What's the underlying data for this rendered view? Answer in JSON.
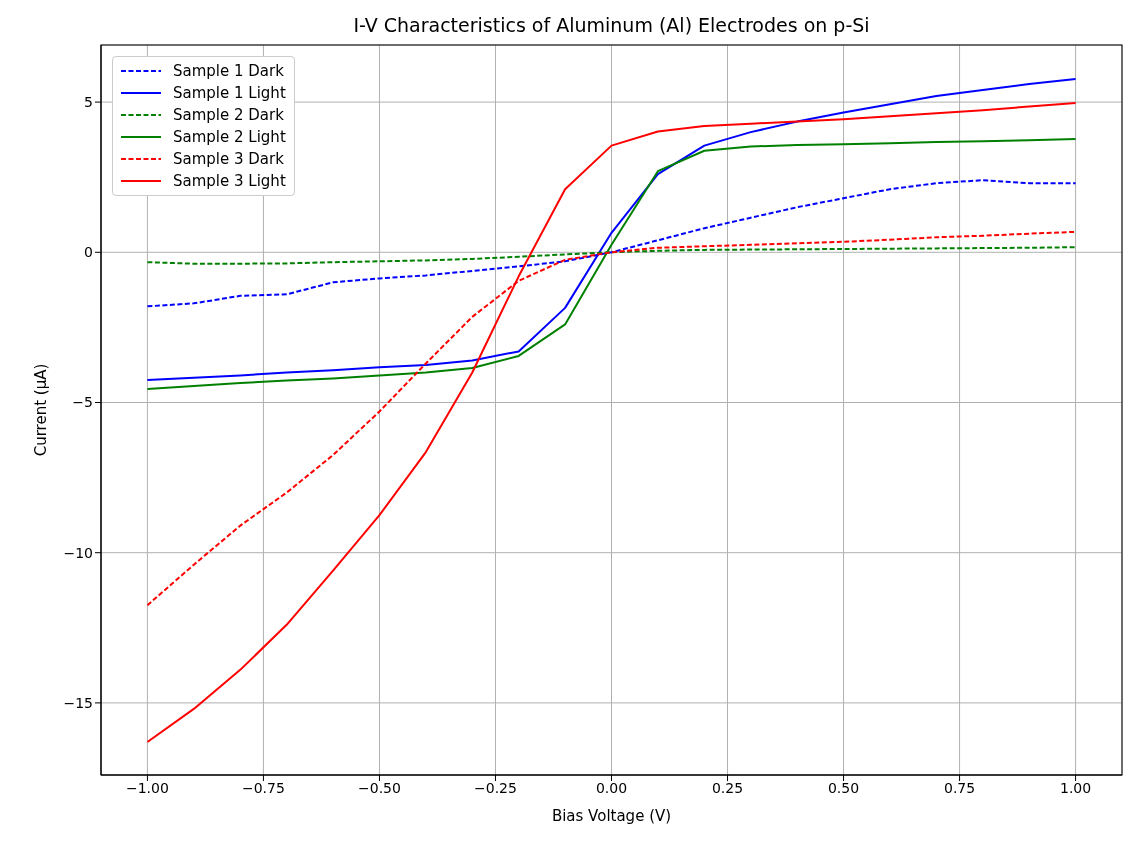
{
  "chart_data": {
    "type": "line",
    "title": "I-V Characteristics of Aluminum (Al) Electrodes on p-Si",
    "xlabel": "Bias Voltage (V)",
    "ylabel": "Current (μA)",
    "x": [
      -1,
      -0.9,
      -0.8,
      -0.7,
      -0.6,
      -0.5,
      -0.4,
      -0.3,
      -0.2,
      -0.1,
      0,
      0.1,
      0.2,
      0.3,
      0.4,
      0.5,
      0.6,
      0.7,
      0.8,
      0.9,
      1
    ],
    "series": [
      {
        "name": "Sample 1 Dark",
        "color": "#0000ff",
        "line_style": "dashed",
        "values": [
          -1.8,
          -1.7,
          -1.45,
          -1.4,
          -1.0,
          -0.87,
          -0.77,
          -0.62,
          -0.47,
          -0.3,
          0,
          0.4,
          0.8,
          1.15,
          1.5,
          1.8,
          2.1,
          2.3,
          2.4,
          2.3,
          2.3
        ]
      },
      {
        "name": "Sample 1 Light",
        "color": "#0000ff",
        "line_style": "solid",
        "values": [
          -4.25,
          -4.18,
          -4.1,
          -4.0,
          -3.93,
          -3.83,
          -3.75,
          -3.6,
          -3.3,
          -1.85,
          0.65,
          2.6,
          3.55,
          4.0,
          4.35,
          4.65,
          4.93,
          5.2,
          5.4,
          5.6,
          5.77
        ]
      },
      {
        "name": "Sample 2 Dark",
        "color": "#008000",
        "line_style": "dashed",
        "values": [
          -0.33,
          -0.38,
          -0.38,
          -0.37,
          -0.33,
          -0.3,
          -0.27,
          -0.22,
          -0.15,
          -0.07,
          0,
          0.05,
          0.08,
          0.09,
          0.1,
          0.11,
          0.12,
          0.13,
          0.14,
          0.15,
          0.17
        ]
      },
      {
        "name": "Sample 2 Light",
        "color": "#008000",
        "line_style": "solid",
        "values": [
          -4.55,
          -4.45,
          -4.35,
          -4.27,
          -4.2,
          -4.1,
          -4.0,
          -3.85,
          -3.45,
          -2.4,
          0.25,
          2.7,
          3.38,
          3.52,
          3.57,
          3.6,
          3.63,
          3.67,
          3.7,
          3.73,
          3.77
        ]
      },
      {
        "name": "Sample 3 Dark",
        "color": "#ff0000",
        "line_style": "dashed",
        "values": [
          -11.75,
          -10.4,
          -9.1,
          -8.0,
          -6.75,
          -5.3,
          -3.7,
          -2.15,
          -0.95,
          -0.25,
          0,
          0.15,
          0.2,
          0.25,
          0.3,
          0.35,
          0.42,
          0.5,
          0.55,
          0.62,
          0.68
        ]
      },
      {
        "name": "Sample 3 Light",
        "color": "#ff0000",
        "line_style": "solid",
        "values": [
          -16.3,
          -15.2,
          -13.9,
          -12.4,
          -10.6,
          -8.75,
          -6.65,
          -4.0,
          -0.8,
          2.1,
          3.55,
          4.02,
          4.2,
          4.28,
          4.35,
          4.43,
          4.53,
          4.63,
          4.73,
          4.85,
          4.97
        ]
      }
    ],
    "xlim": [
      -1.1,
      1.1
    ],
    "ylim": [
      -17.4,
      6.9
    ],
    "xticks": [
      {
        "value": -1,
        "label": "−1.00"
      },
      {
        "value": -0.75,
        "label": "−0.75"
      },
      {
        "value": -0.5,
        "label": "−0.50"
      },
      {
        "value": -0.25,
        "label": "−0.25"
      },
      {
        "value": 0,
        "label": "0.00"
      },
      {
        "value": 0.25,
        "label": "0.25"
      },
      {
        "value": 0.5,
        "label": "0.50"
      },
      {
        "value": 0.75,
        "label": "0.75"
      },
      {
        "value": 1,
        "label": "1.00"
      }
    ],
    "yticks": [
      {
        "value": -15,
        "label": "−15"
      },
      {
        "value": -10,
        "label": "−10"
      },
      {
        "value": -5,
        "label": "−5"
      },
      0,
      5
    ],
    "grid": true,
    "legend": "top left",
    "marker": "none"
  }
}
